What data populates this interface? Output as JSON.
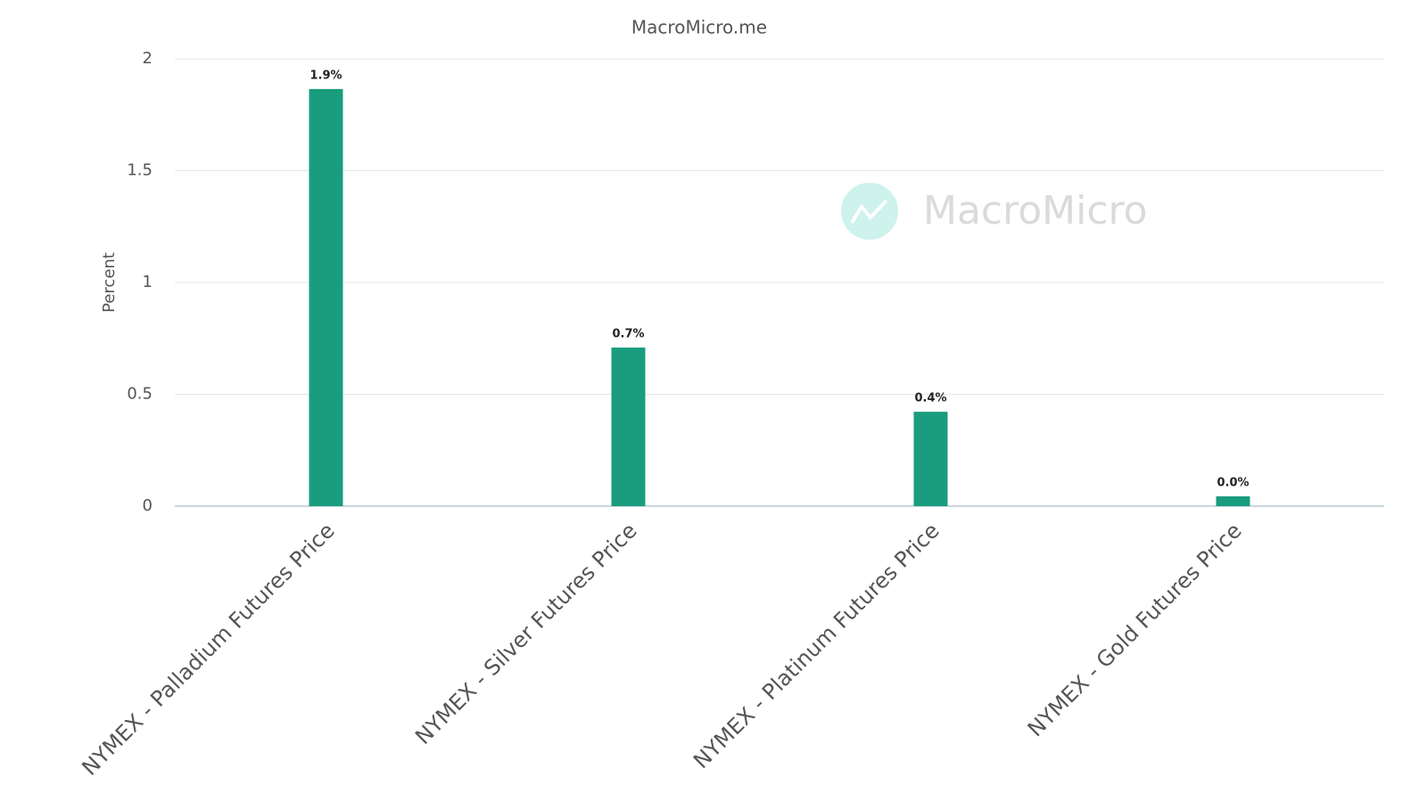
{
  "chart_data": {
    "type": "bar",
    "title": "MacroMicro.me",
    "y_label": "Percent",
    "watermark": "MacroMicro",
    "categories": [
      "NYMEX - Palladium Futures Price",
      "NYMEX - Silver Futures Price",
      "NYMEX - Platinum Futures Price",
      "NYMEX - Gold Futures Price"
    ],
    "values": [
      1.865,
      0.709,
      0.422,
      0.044
    ],
    "value_labels": [
      "1.9%",
      "0.7%",
      "0.4%",
      "0.0%"
    ],
    "color": "#1a9c7e",
    "ylim": [
      0,
      2
    ],
    "yticks": [
      0,
      0.5,
      1,
      1.5,
      2
    ],
    "grid": true
  }
}
